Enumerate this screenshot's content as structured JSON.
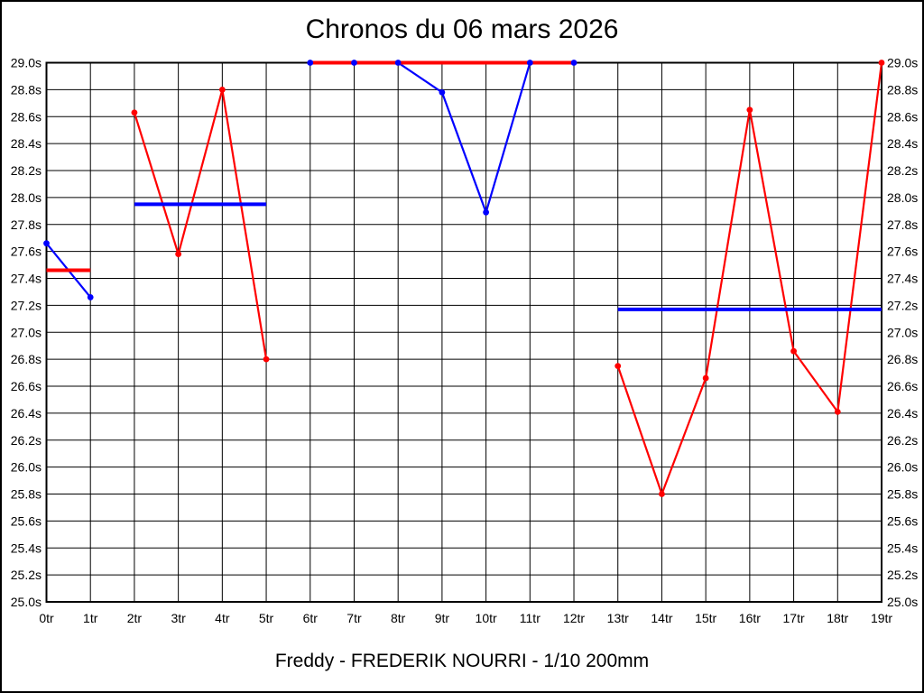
{
  "chart_data": {
    "type": "line",
    "title": "Chronos du 06 mars 2026",
    "caption": "Freddy - FREDERIK NOURRI - 1/10 200mm",
    "y_max": 29.0,
    "y_min": 25.0,
    "y_step": 0.2,
    "grid": true,
    "legend": "none",
    "colors": {
      "red": "#ff0000",
      "blue": "#0000ff",
      "grid": "#000000",
      "text": "#000000",
      "background": "#ffffff"
    },
    "x_ticks": [
      "0tr",
      "1tr",
      "2tr",
      "3tr",
      "4tr",
      "5tr",
      "6tr",
      "7tr",
      "8tr",
      "9tr",
      "10tr",
      "11tr",
      "12tr",
      "13tr",
      "14tr",
      "15tr",
      "16tr",
      "17tr",
      "18tr",
      "19tr"
    ],
    "y_ticks": [
      "29.0s",
      "28.8s",
      "28.6s",
      "28.4s",
      "28.2s",
      "28.0s",
      "27.8s",
      "27.6s",
      "27.4s",
      "27.2s",
      "27.0s",
      "26.8s",
      "26.6s",
      "26.4s",
      "26.2s",
      "26.0s",
      "25.8s",
      "25.6s",
      "25.4s",
      "25.2s",
      "25.0s"
    ],
    "runs": [
      {
        "name": "run-1",
        "color": "blue",
        "mean_color": "red",
        "start": 0,
        "laps": [
          27.66,
          27.26
        ],
        "mean": 27.46
      },
      {
        "name": "run-2",
        "color": "red",
        "mean_color": "blue",
        "start": 2,
        "laps": [
          28.63,
          27.58,
          28.8,
          26.8
        ],
        "mean": 27.95
      },
      {
        "name": "run-3",
        "color": "blue",
        "mean_color": "red",
        "start": 6,
        "laps": [
          29.0,
          29.0,
          29.0,
          28.78,
          27.89,
          29.0,
          29.0
        ],
        "mean": 29.0
      },
      {
        "name": "run-4",
        "color": "red",
        "mean_color": "blue",
        "start": 13,
        "laps": [
          26.75,
          25.8,
          26.66,
          28.65,
          26.86,
          26.41,
          29.0
        ],
        "mean": 27.17
      }
    ]
  }
}
